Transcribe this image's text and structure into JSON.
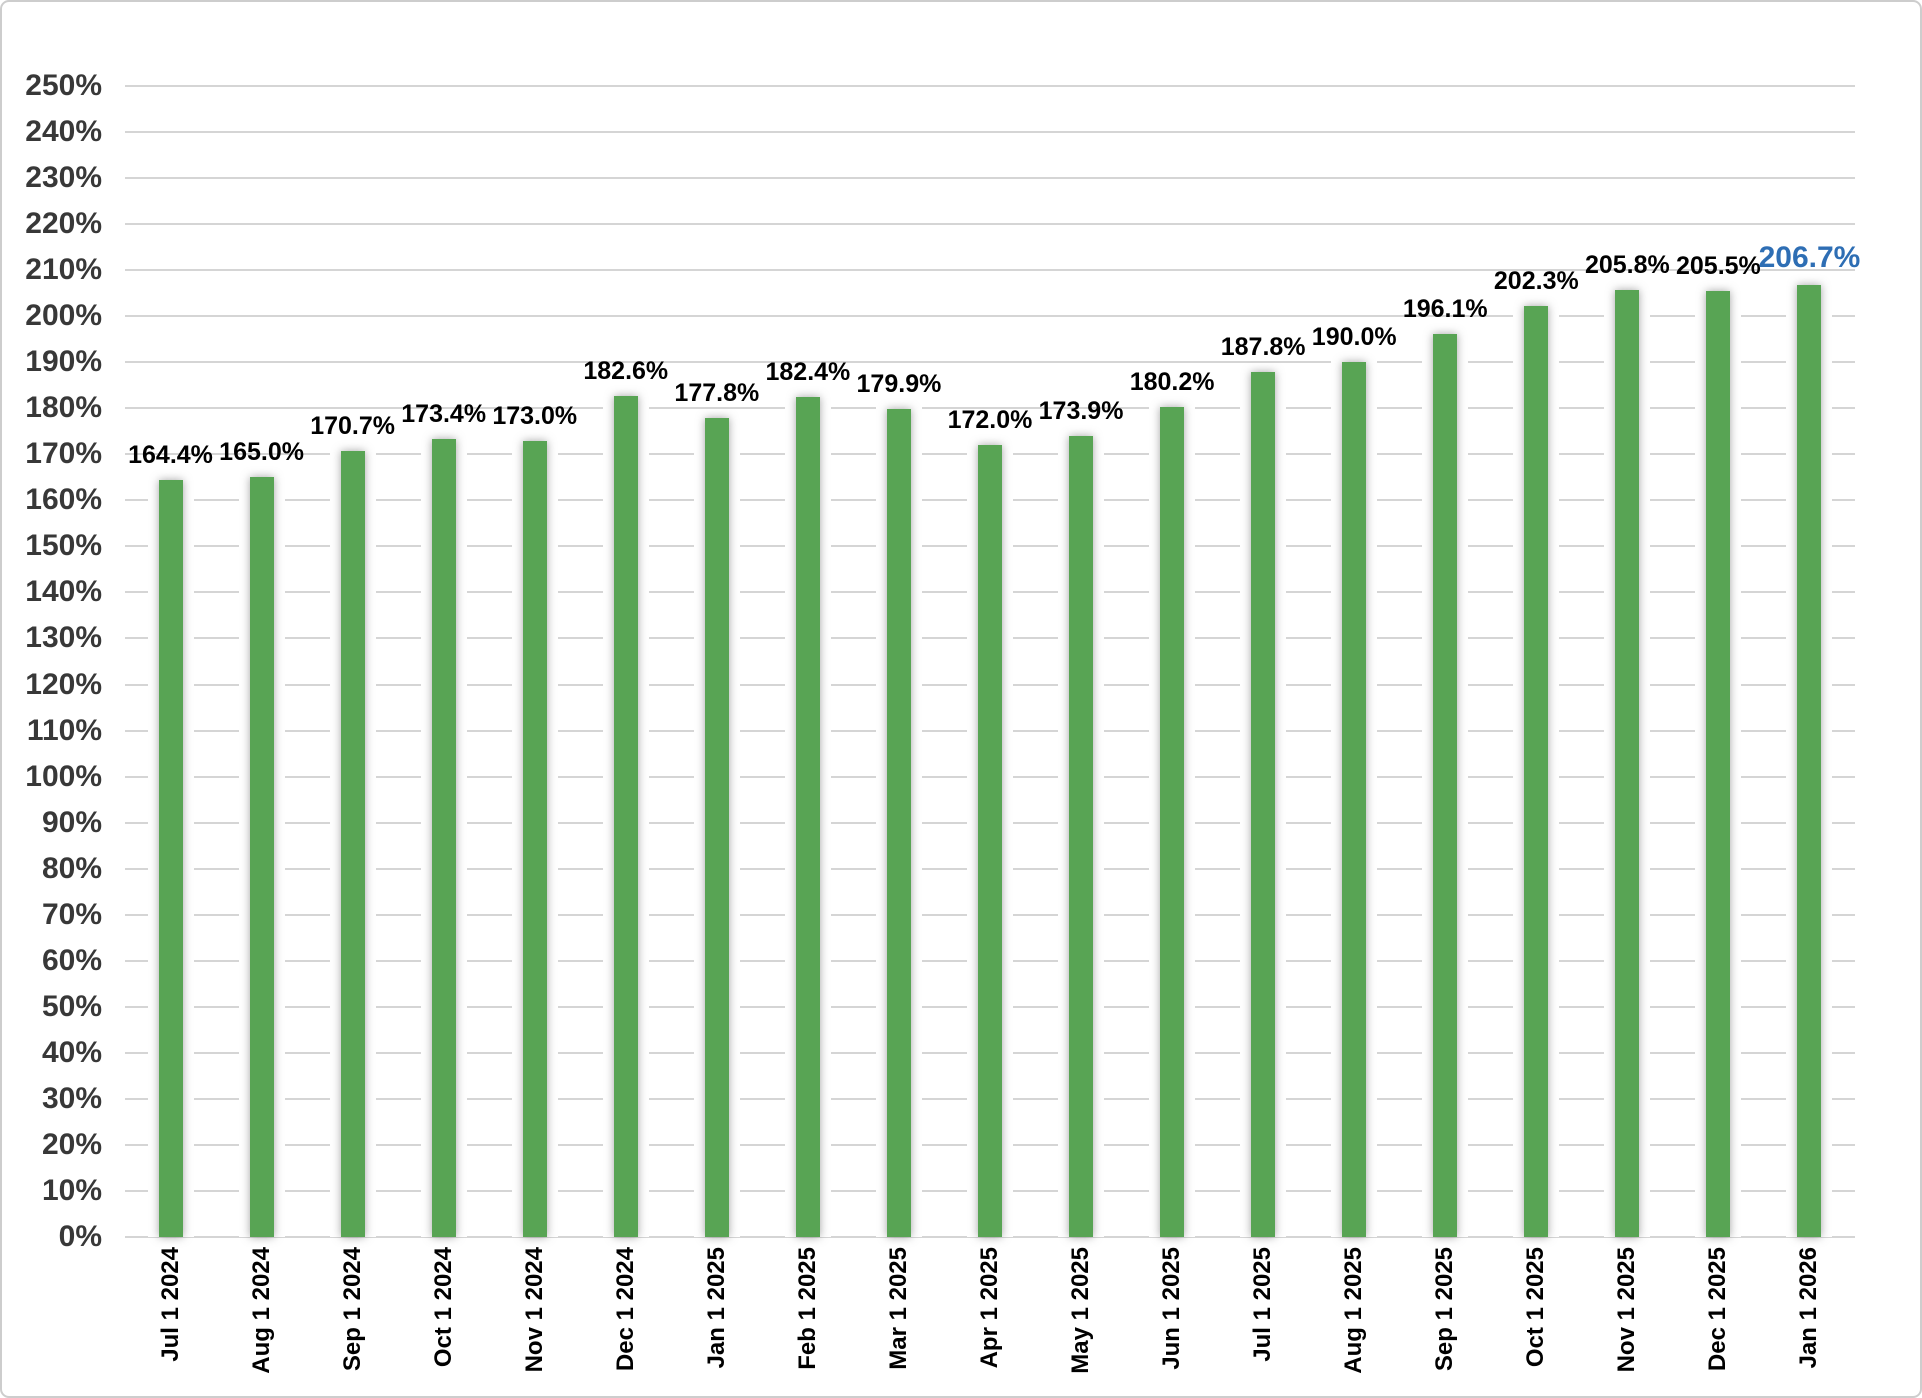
{
  "chart_data": {
    "type": "bar",
    "title": "",
    "xlabel": "",
    "ylabel": "",
    "categories": [
      "Jul 1 2024",
      "Aug 1 2024",
      "Sep 1 2024",
      "Oct 1 2024",
      "Nov 1 2024",
      "Dec 1 2024",
      "Jan 1 2025",
      "Feb 1 2025",
      "Mar 1 2025",
      "Apr 1 2025",
      "May 1 2025",
      "Jun 1 2025",
      "Jul 1 2025",
      "Aug 1 2025",
      "Sep 1 2025",
      "Oct 1 2025",
      "Nov 1 2025",
      "Dec 1 2025",
      "Jan 1 2026"
    ],
    "values": [
      164.4,
      165.0,
      170.7,
      173.4,
      173.0,
      182.6,
      177.8,
      182.4,
      179.9,
      172.0,
      173.9,
      180.2,
      187.8,
      190.0,
      196.1,
      202.3,
      205.8,
      205.5,
      206.7
    ],
    "value_labels": [
      "164.4%",
      "165.0%",
      "170.7%",
      "173.4%",
      "173.0%",
      "182.6%",
      "177.8%",
      "182.4%",
      "179.9%",
      "172.0%",
      "173.9%",
      "180.2%",
      "187.8%",
      "190.0%",
      "196.1%",
      "202.3%",
      "205.8%",
      "205.5%",
      "206.7%"
    ],
    "y_tick_labels": [
      "0%",
      "10%",
      "20%",
      "30%",
      "40%",
      "50%",
      "60%",
      "70%",
      "80%",
      "90%",
      "100%",
      "110%",
      "120%",
      "130%",
      "140%",
      "150%",
      "160%",
      "170%",
      "180%",
      "190%",
      "200%",
      "210%",
      "220%",
      "230%",
      "240%",
      "250%"
    ],
    "ylim": [
      0,
      250
    ],
    "y_tick_step": 10,
    "grid": true,
    "legend": "none",
    "highlight_last_label": true,
    "colors": {
      "bar": "#58a454",
      "gridline": "#d5d5d5",
      "value_label": "#000000",
      "final_value_label": "#2e6eb4",
      "y_tick": "#383838",
      "x_tick": "#000000",
      "border": "#cdcdcd",
      "background": "#ffffff"
    }
  }
}
